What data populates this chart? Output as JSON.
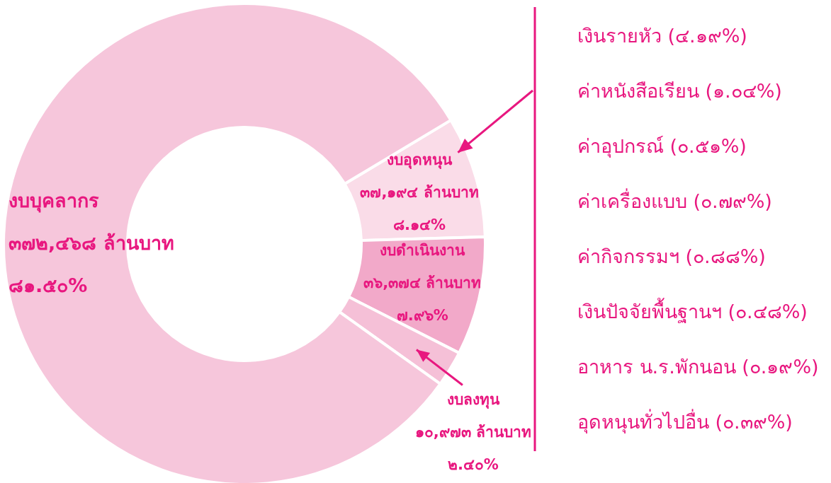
{
  "chart_data": {
    "type": "donut",
    "categories": [
      "งบอุดหนุน",
      "งบดำเนินงาน",
      "งบลงทุน",
      "งบบุคลากร"
    ],
    "values": [
      37194,
      36374,
      10973,
      372468
    ],
    "colors": [
      "#fadce8",
      "#f2a9c9",
      "#f5c0d7",
      "#f6c6db"
    ],
    "value_labels": [
      "๓๗,๑๙๔ ล้านบาท\n๘.๑๔%",
      "๓๖,๓๗๔ ล้านบาท\n๗.๙๖%",
      "๑๐,๙๗๓ ล้านบาท\n๒.๔๐%",
      "๓๗๒,๔๖๘ ล้านบาท\n๘๑.๕๐%"
    ],
    "annotations": [
      "เงินรายหัว (๔.๑๙%)",
      "ค่าหนังสือเรียน (๑.๐๔%)",
      "ค่าอุปกรณ์ (๐.๕๑%)",
      "ค่าเครื่องแบบ (๐.๗๙%)",
      "ค่ากิจกรรมฯ (๐.๘๘%)",
      "เงินปัจจัยพื้นฐานฯ (๐.๔๘%)",
      "อาหาร น.ร.พักนอน (๐.๑๙%)",
      "อุดหนุนทั่วไปอื่น (๐.๓๙%)"
    ]
  }
}
